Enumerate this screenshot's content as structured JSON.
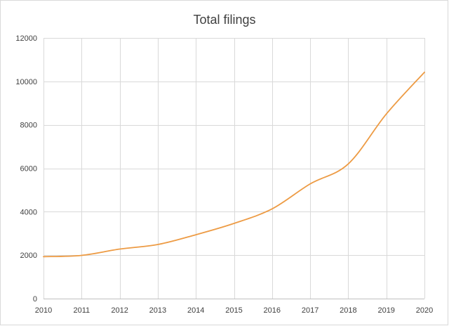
{
  "chart_data": {
    "type": "line",
    "title": "Total filings",
    "xlabel": "",
    "ylabel": "",
    "x": [
      2010,
      2011,
      2012,
      2013,
      2014,
      2015,
      2016,
      2017,
      2018,
      2019,
      2020
    ],
    "series": [
      {
        "values": [
          1930,
          1990,
          2280,
          2490,
          2940,
          3460,
          4130,
          5280,
          6200,
          8500,
          10420
        ],
        "color": "#ed9b44"
      }
    ],
    "ylim": [
      0,
      12000
    ],
    "yticks": [
      0,
      2000,
      4000,
      6000,
      8000,
      10000,
      12000
    ],
    "grid": true,
    "legend": "none",
    "smooth": true
  }
}
